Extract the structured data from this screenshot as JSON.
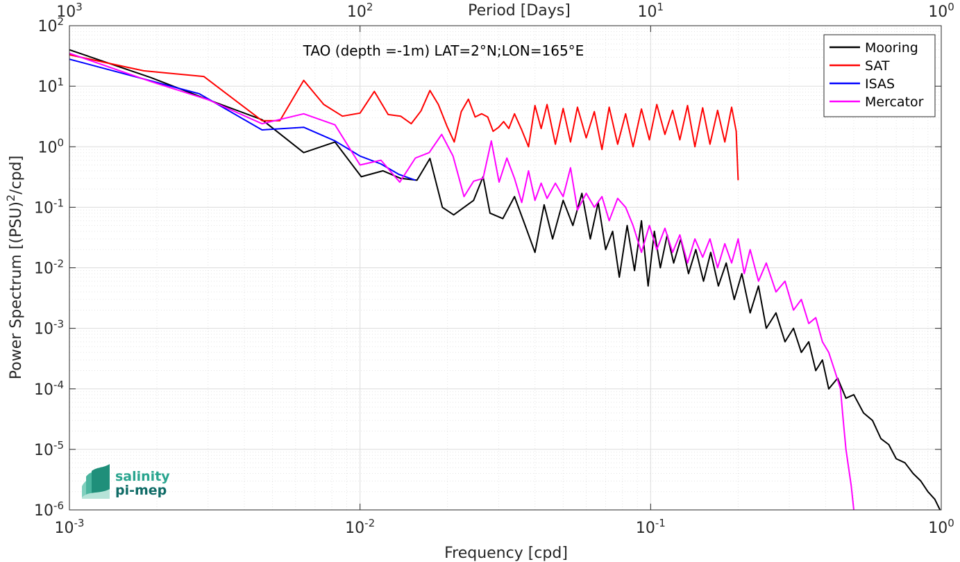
{
  "chart_data": {
    "type": "line",
    "title": "TAO (depth =-1m) LAT=2°N;LON=165°E",
    "xlabel": "Frequency [cpd]",
    "ylabel": "Power Spectrum [(PSU)²/cpd]",
    "ylabel_main": "Power Spectrum [(PSU)",
    "ylabel_sup": "2",
    "ylabel_tail": "/cpd]",
    "top_xlabel": "Period [Days]",
    "x_scale": "log",
    "y_scale": "log",
    "xlim": [
      0.001,
      1
    ],
    "ylim": [
      1e-06,
      100
    ],
    "grid": true,
    "legend_position": "top-right",
    "x_ticks": [
      {
        "value": 0.001,
        "base": "10",
        "exp": "-3"
      },
      {
        "value": 0.01,
        "base": "10",
        "exp": "-2"
      },
      {
        "value": 0.1,
        "base": "10",
        "exp": "-1"
      },
      {
        "value": 1,
        "base": "10",
        "exp": "0"
      }
    ],
    "y_ticks": [
      {
        "value": 100,
        "base": "10",
        "exp": "2"
      },
      {
        "value": 10,
        "base": "10",
        "exp": "1"
      },
      {
        "value": 1,
        "base": "10",
        "exp": "0"
      },
      {
        "value": 0.1,
        "base": "10",
        "exp": "-1"
      },
      {
        "value": 0.01,
        "base": "10",
        "exp": "-2"
      },
      {
        "value": 0.001,
        "base": "10",
        "exp": "-3"
      },
      {
        "value": 0.0001,
        "base": "10",
        "exp": "-4"
      },
      {
        "value": 1e-05,
        "base": "10",
        "exp": "-5"
      },
      {
        "value": 1e-06,
        "base": "10",
        "exp": "-6"
      }
    ],
    "top_ticks": [
      {
        "value": 0.001,
        "base": "10",
        "exp": "3"
      },
      {
        "value": 0.01,
        "base": "10",
        "exp": "2"
      },
      {
        "value": 0.1,
        "base": "10",
        "exp": "1"
      },
      {
        "value": 1,
        "base": "10",
        "exp": "0"
      }
    ],
    "series": [
      {
        "name": "Mooring",
        "color": "#000000",
        "x": [
          0.001,
          0.0019,
          0.003,
          0.0046,
          0.0064,
          0.0082,
          0.0101,
          0.012,
          0.0138,
          0.0157,
          0.0174,
          0.0192,
          0.021,
          0.0228,
          0.0246,
          0.0265,
          0.028,
          0.031,
          0.034,
          0.037,
          0.04,
          0.043,
          0.046,
          0.05,
          0.054,
          0.058,
          0.062,
          0.066,
          0.07,
          0.074,
          0.078,
          0.083,
          0.088,
          0.093,
          0.098,
          0.103,
          0.108,
          0.114,
          0.12,
          0.127,
          0.135,
          0.143,
          0.152,
          0.161,
          0.171,
          0.182,
          0.194,
          0.206,
          0.22,
          0.235,
          0.25,
          0.27,
          0.29,
          0.31,
          0.33,
          0.35,
          0.37,
          0.39,
          0.41,
          0.44,
          0.47,
          0.5,
          0.54,
          0.58,
          0.62,
          0.66,
          0.7,
          0.75,
          0.8,
          0.85,
          0.9,
          0.95,
          0.99
        ],
        "values": [
          40,
          14,
          6.0,
          2.8,
          0.8,
          1.2,
          0.32,
          0.4,
          0.3,
          0.28,
          0.64,
          0.1,
          0.075,
          0.1,
          0.13,
          0.32,
          0.08,
          0.065,
          0.15,
          0.05,
          0.018,
          0.11,
          0.03,
          0.13,
          0.05,
          0.17,
          0.03,
          0.12,
          0.02,
          0.04,
          0.007,
          0.05,
          0.009,
          0.06,
          0.005,
          0.04,
          0.01,
          0.035,
          0.012,
          0.03,
          0.008,
          0.02,
          0.006,
          0.018,
          0.005,
          0.012,
          0.003,
          0.008,
          0.0018,
          0.005,
          0.001,
          0.0018,
          0.0006,
          0.001,
          0.0004,
          0.0006,
          0.0002,
          0.0003,
          0.0001,
          0.00015,
          7e-05,
          8e-05,
          4e-05,
          3e-05,
          1.5e-05,
          1.2e-05,
          7e-06,
          6e-06,
          4e-06,
          3e-06,
          2e-06,
          1.5e-06,
          1e-06
        ]
      },
      {
        "name": "SAT",
        "color": "#ff0000",
        "x": [
          0.001,
          0.0018,
          0.0029,
          0.0046,
          0.0053,
          0.0064,
          0.0075,
          0.0087,
          0.01,
          0.0112,
          0.0125,
          0.0138,
          0.015,
          0.0162,
          0.0174,
          0.0186,
          0.0199,
          0.0211,
          0.0223,
          0.0236,
          0.0249,
          0.0262,
          0.0275,
          0.0287,
          0.03,
          0.0312,
          0.0325,
          0.034,
          0.036,
          0.038,
          0.04,
          0.042,
          0.044,
          0.047,
          0.05,
          0.053,
          0.056,
          0.06,
          0.064,
          0.068,
          0.072,
          0.077,
          0.082,
          0.087,
          0.093,
          0.099,
          0.105,
          0.112,
          0.119,
          0.126,
          0.134,
          0.142,
          0.151,
          0.16,
          0.17,
          0.18,
          0.19,
          0.197,
          0.2
        ],
        "values": [
          33,
          18,
          14.5,
          2.7,
          2.7,
          12.5,
          5.0,
          3.2,
          3.6,
          8.2,
          3.4,
          3.2,
          2.4,
          3.9,
          8.5,
          5.0,
          2.2,
          1.2,
          3.8,
          6.1,
          3.1,
          3.5,
          3.1,
          1.8,
          2.1,
          2.6,
          2.0,
          3.5,
          1.9,
          1.0,
          4.8,
          2.0,
          5.0,
          1.1,
          4.3,
          1.2,
          4.5,
          1.4,
          3.8,
          0.9,
          4.5,
          1.1,
          3.5,
          1.0,
          4.2,
          1.3,
          5.0,
          1.6,
          4.0,
          1.3,
          4.8,
          1.0,
          4.4,
          1.1,
          4.0,
          1.2,
          4.5,
          1.8,
          0.28
        ]
      },
      {
        "name": "ISAS",
        "color": "#0000ff",
        "x": [
          0.001,
          0.0028,
          0.0046,
          0.0064,
          0.0082,
          0.01,
          0.0118,
          0.0136,
          0.0155
        ],
        "values": [
          28,
          7.5,
          1.9,
          2.1,
          1.25,
          0.7,
          0.52,
          0.35,
          0.28
        ]
      },
      {
        "name": "Mercator",
        "color": "#ff00ff",
        "x": [
          0.001,
          0.0019,
          0.003,
          0.0046,
          0.0064,
          0.0082,
          0.01,
          0.0118,
          0.0137,
          0.0155,
          0.0173,
          0.0191,
          0.0209,
          0.0228,
          0.0246,
          0.0265,
          0.0283,
          0.0301,
          0.032,
          0.034,
          0.036,
          0.038,
          0.04,
          0.042,
          0.044,
          0.047,
          0.05,
          0.053,
          0.056,
          0.06,
          0.064,
          0.068,
          0.072,
          0.077,
          0.082,
          0.087,
          0.093,
          0.099,
          0.105,
          0.112,
          0.119,
          0.126,
          0.134,
          0.142,
          0.151,
          0.16,
          0.17,
          0.18,
          0.19,
          0.2,
          0.21,
          0.22,
          0.235,
          0.25,
          0.27,
          0.29,
          0.31,
          0.33,
          0.35,
          0.37,
          0.39,
          0.41,
          0.43,
          0.45,
          0.46,
          0.47,
          0.48,
          0.49,
          0.5
        ],
        "values": [
          35,
          12,
          6.0,
          2.4,
          3.5,
          2.3,
          0.5,
          0.6,
          0.26,
          0.65,
          0.8,
          1.6,
          0.7,
          0.15,
          0.27,
          0.3,
          1.25,
          0.26,
          0.65,
          0.3,
          0.12,
          0.4,
          0.13,
          0.25,
          0.14,
          0.25,
          0.15,
          0.45,
          0.09,
          0.17,
          0.1,
          0.15,
          0.06,
          0.14,
          0.1,
          0.05,
          0.018,
          0.05,
          0.02,
          0.045,
          0.018,
          0.035,
          0.012,
          0.03,
          0.015,
          0.03,
          0.01,
          0.025,
          0.012,
          0.03,
          0.008,
          0.02,
          0.006,
          0.012,
          0.004,
          0.006,
          0.002,
          0.003,
          0.0012,
          0.0015,
          0.0006,
          0.0004,
          0.0002,
          0.0001,
          3e-05,
          1e-05,
          5e-06,
          2.5e-06,
          1e-06
        ]
      }
    ]
  },
  "logo": {
    "line1": "salinity",
    "line2": "pi-mep"
  }
}
